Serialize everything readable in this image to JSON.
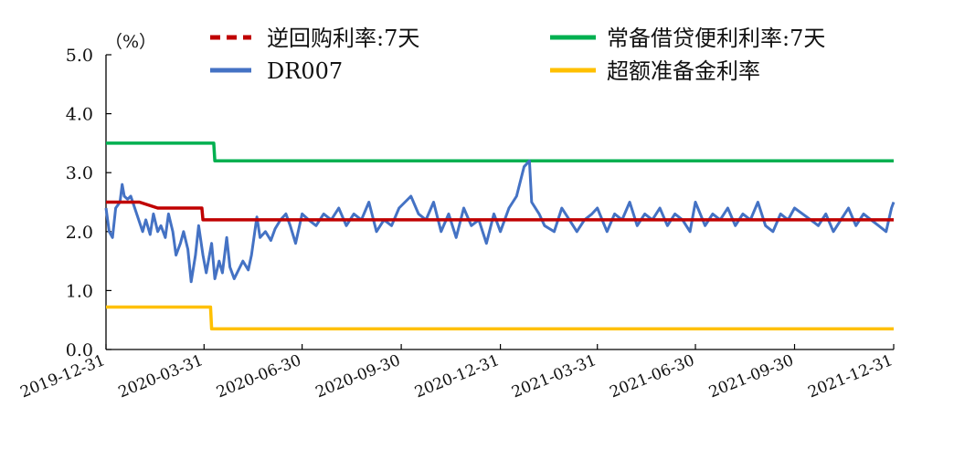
{
  "chart_data": {
    "type": "line",
    "unit_label": "（%）",
    "ylim": [
      0,
      5
    ],
    "y_ticks": [
      "5.0",
      "4.0",
      "3.0",
      "2.0",
      "1.0",
      "0.0"
    ],
    "y_tick_values": [
      5,
      4,
      3,
      2,
      1,
      0
    ],
    "xlim": [
      "2019-12-31",
      "2021-12-31"
    ],
    "x_ticks": [
      "2019-12-31",
      "2020-03-31",
      "2020-06-30",
      "2020-09-30",
      "2020-12-31",
      "2021-03-31",
      "2021-06-30",
      "2021-09-30",
      "2021-12-31"
    ],
    "legend_placement": "top",
    "grid": false,
    "series": [
      {
        "name": "逆回购利率:7天",
        "color": "#C00000",
        "style": "dashed",
        "x": [
          "2019-12-31",
          "2020-01-31",
          "2020-02-17",
          "2020-03-29",
          "2020-03-30",
          "2021-12-31"
        ],
        "values": [
          2.5,
          2.5,
          2.4,
          2.4,
          2.2,
          2.2
        ]
      },
      {
        "name": "常备借贷便利利率:7天",
        "color": "#00B050",
        "style": "solid",
        "x": [
          "2019-12-31",
          "2020-04-09",
          "2020-04-10",
          "2021-12-31"
        ],
        "values": [
          3.5,
          3.5,
          3.2,
          3.2
        ]
      },
      {
        "name": "DR007",
        "color": "#4472C4",
        "style": "solid",
        "x": [
          "2019-12-31",
          "2020-01-03",
          "2020-01-06",
          "2020-01-09",
          "2020-01-13",
          "2020-01-15",
          "2020-01-17",
          "2020-01-20",
          "2020-01-23",
          "2020-02-03",
          "2020-02-06",
          "2020-02-10",
          "2020-02-13",
          "2020-02-17",
          "2020-02-20",
          "2020-02-24",
          "2020-02-27",
          "2020-03-02",
          "2020-03-05",
          "2020-03-09",
          "2020-03-12",
          "2020-03-16",
          "2020-03-19",
          "2020-03-23",
          "2020-03-26",
          "2020-03-30",
          "2020-04-02",
          "2020-04-07",
          "2020-04-10",
          "2020-04-14",
          "2020-04-17",
          "2020-04-21",
          "2020-04-24",
          "2020-04-28",
          "2020-05-06",
          "2020-05-11",
          "2020-05-14",
          "2020-05-19",
          "2020-05-22",
          "2020-05-27",
          "2020-06-01",
          "2020-06-05",
          "2020-06-10",
          "2020-06-15",
          "2020-06-19",
          "2020-06-24",
          "2020-06-30",
          "2020-07-06",
          "2020-07-13",
          "2020-07-20",
          "2020-07-27",
          "2020-08-03",
          "2020-08-10",
          "2020-08-17",
          "2020-08-24",
          "2020-08-31",
          "2020-09-07",
          "2020-09-14",
          "2020-09-21",
          "2020-09-28",
          "2020-10-09",
          "2020-10-16",
          "2020-10-23",
          "2020-10-30",
          "2020-11-06",
          "2020-11-13",
          "2020-11-20",
          "2020-11-27",
          "2020-12-04",
          "2020-12-11",
          "2020-12-18",
          "2020-12-25",
          "2020-12-31",
          "2021-01-08",
          "2021-01-15",
          "2021-01-22",
          "2021-01-27",
          "2021-01-29",
          "2021-02-05",
          "2021-02-10",
          "2021-02-19",
          "2021-02-26",
          "2021-03-05",
          "2021-03-12",
          "2021-03-19",
          "2021-03-26",
          "2021-03-31",
          "2021-04-09",
          "2021-04-16",
          "2021-04-23",
          "2021-04-30",
          "2021-05-07",
          "2021-05-14",
          "2021-05-21",
          "2021-05-28",
          "2021-06-04",
          "2021-06-11",
          "2021-06-18",
          "2021-06-25",
          "2021-06-30",
          "2021-07-09",
          "2021-07-16",
          "2021-07-23",
          "2021-07-30",
          "2021-08-06",
          "2021-08-13",
          "2021-08-20",
          "2021-08-27",
          "2021-09-03",
          "2021-09-10",
          "2021-09-17",
          "2021-09-24",
          "2021-09-30",
          "2021-10-15",
          "2021-10-22",
          "2021-10-29",
          "2021-11-05",
          "2021-11-12",
          "2021-11-19",
          "2021-11-26",
          "2021-12-03",
          "2021-12-10",
          "2021-12-17",
          "2021-12-24",
          "2021-12-29",
          "2021-12-31"
        ],
        "values": [
          2.4,
          2.0,
          1.9,
          2.4,
          2.5,
          2.8,
          2.6,
          2.55,
          2.6,
          2.0,
          2.2,
          1.95,
          2.3,
          2.0,
          2.1,
          1.9,
          2.3,
          2.0,
          1.6,
          1.8,
          2.0,
          1.7,
          1.15,
          1.6,
          2.1,
          1.6,
          1.3,
          1.8,
          1.2,
          1.5,
          1.3,
          1.9,
          1.4,
          1.2,
          1.5,
          1.35,
          1.6,
          2.25,
          1.9,
          2.0,
          1.85,
          2.05,
          2.2,
          2.3,
          2.1,
          1.8,
          2.3,
          2.2,
          2.1,
          2.3,
          2.2,
          2.4,
          2.1,
          2.3,
          2.2,
          2.5,
          2.0,
          2.2,
          2.1,
          2.4,
          2.6,
          2.3,
          2.2,
          2.5,
          2.0,
          2.3,
          1.9,
          2.4,
          2.1,
          2.2,
          1.8,
          2.3,
          2.0,
          2.4,
          2.6,
          3.1,
          3.2,
          2.5,
          2.3,
          2.1,
          2.0,
          2.4,
          2.2,
          2.0,
          2.2,
          2.3,
          2.4,
          2.0,
          2.3,
          2.2,
          2.5,
          2.1,
          2.3,
          2.2,
          2.4,
          2.1,
          2.3,
          2.2,
          2.0,
          2.5,
          2.1,
          2.3,
          2.2,
          2.4,
          2.1,
          2.3,
          2.2,
          2.5,
          2.1,
          2.0,
          2.3,
          2.2,
          2.4,
          2.2,
          2.1,
          2.3,
          2.0,
          2.2,
          2.4,
          2.1,
          2.3,
          2.2,
          2.1,
          2.0,
          2.4,
          2.5
        ]
      },
      {
        "name": "超额准备金利率",
        "color": "#FFC000",
        "style": "solid",
        "x": [
          "2019-12-31",
          "2020-04-06",
          "2020-04-07",
          "2021-12-31"
        ],
        "values": [
          0.72,
          0.72,
          0.35,
          0.35
        ]
      }
    ]
  }
}
